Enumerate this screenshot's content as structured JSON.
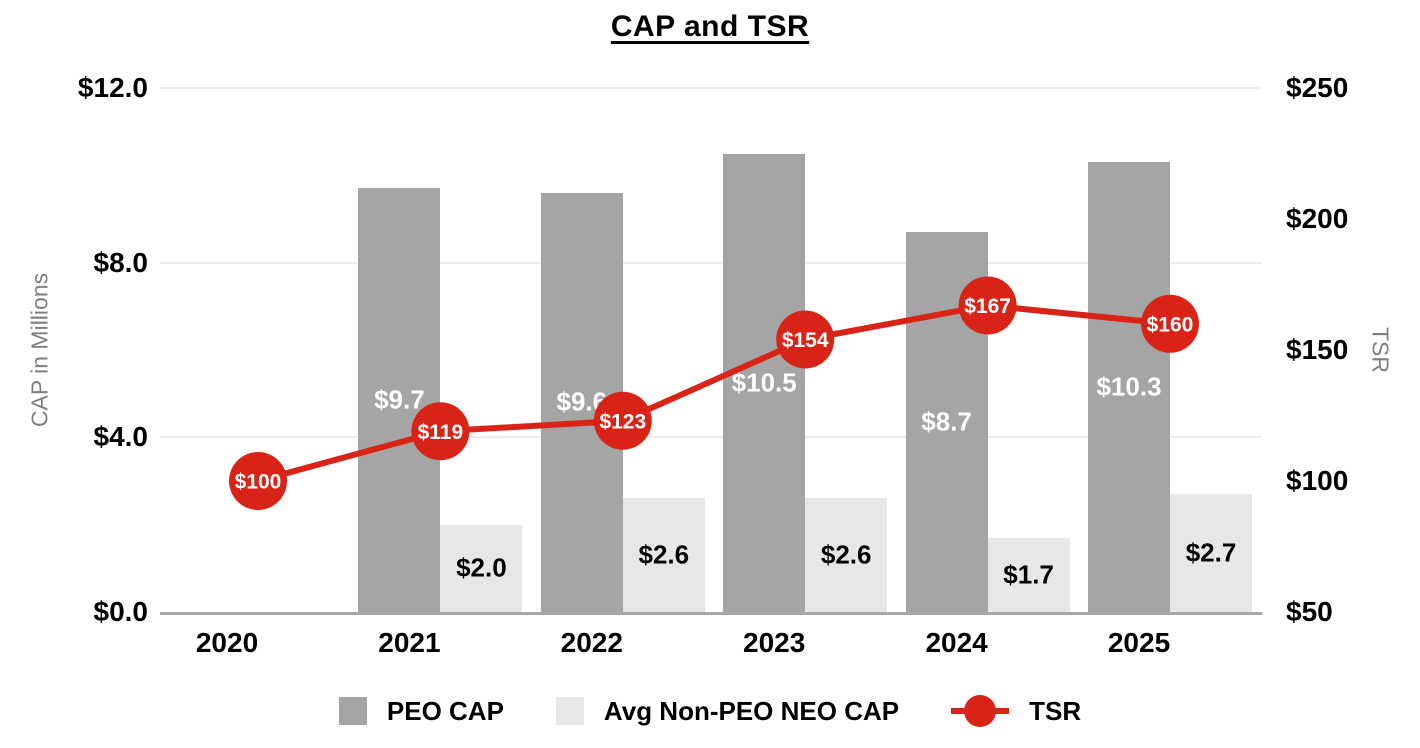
{
  "chart_data": {
    "type": "combo-bar-line",
    "title": "CAP and TSR",
    "categories": [
      "2020",
      "2021",
      "2022",
      "2023",
      "2024",
      "2025"
    ],
    "series": [
      {
        "name": "PEO CAP",
        "type": "bar",
        "axis": "left",
        "values": [
          null,
          9.7,
          9.6,
          10.5,
          8.7,
          10.3
        ],
        "labels": [
          "",
          "$9.7",
          "$9.6",
          "$10.5",
          "$8.7",
          "$10.3"
        ],
        "color": "#a5a5a5",
        "label_color": "#ffffff"
      },
      {
        "name": "Avg Non-PEO NEO CAP",
        "type": "bar",
        "axis": "left",
        "values": [
          null,
          2.0,
          2.6,
          2.6,
          1.7,
          2.7
        ],
        "labels": [
          "",
          "$2.0",
          "$2.6",
          "$2.6",
          "$1.7",
          "$2.7"
        ],
        "color": "#e7e7e7",
        "label_color": "#000000"
      },
      {
        "name": "TSR",
        "type": "line",
        "axis": "right",
        "values": [
          100,
          119,
          123,
          154,
          167,
          160
        ],
        "labels": [
          "$100",
          "$119",
          "$123",
          "$154",
          "$167",
          "$160"
        ],
        "color": "#da2317",
        "label_color": "#ffffff"
      }
    ],
    "left_axis": {
      "title": "CAP in Millions",
      "min": 0,
      "max": 12,
      "ticks": [
        {
          "value": 0,
          "label": "$0.0"
        },
        {
          "value": 4,
          "label": "$4.0"
        },
        {
          "value": 8,
          "label": "$8.0"
        },
        {
          "value": 12,
          "label": "$12.0"
        }
      ]
    },
    "right_axis": {
      "title": "TSR",
      "min": 50,
      "max": 250,
      "ticks": [
        {
          "value": 50,
          "label": "$50"
        },
        {
          "value": 100,
          "label": "$100"
        },
        {
          "value": 150,
          "label": "$150"
        },
        {
          "value": 200,
          "label": "$200"
        },
        {
          "value": 250,
          "label": "$250"
        }
      ]
    },
    "legend_position": "bottom",
    "grid": "horizontal",
    "colors": {
      "grid": "#ececec",
      "axis_line": "#a6a6a6",
      "axis_title_text": "#7f7f7f",
      "tick_text": "#000000"
    }
  }
}
